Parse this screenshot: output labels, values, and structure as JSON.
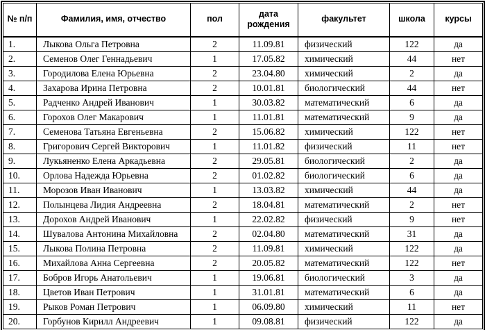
{
  "table": {
    "headers": [
      "№ п/п",
      "Фамилия, имя, отчество",
      "пол",
      "дата рождения",
      "факультет",
      "школа",
      "курсы"
    ],
    "rows": [
      [
        "1.",
        "Лыкова Ольга Петровна",
        "2",
        "11.09.81",
        "физический",
        "122",
        "да"
      ],
      [
        "2.",
        "Семенов Олег Геннадьевич",
        "1",
        "17.05.82",
        "химический",
        "44",
        "нет"
      ],
      [
        "3.",
        "Городилова Елена Юрьевна",
        "2",
        "23.04.80",
        "химический",
        "2",
        "да"
      ],
      [
        "4.",
        "Захарова Ирина Петровна",
        "2",
        "10.01.81",
        "биологический",
        "44",
        "нет"
      ],
      [
        "5.",
        "Радченко Андрей Иванович",
        "1",
        "30.03.82",
        "математический",
        "6",
        "да"
      ],
      [
        "6.",
        "Горохов Олег Макарович",
        "1",
        "11.01.81",
        "математический",
        "9",
        "да"
      ],
      [
        "7.",
        "Семенова Татьяна Евгеньевна",
        "2",
        "15.06.82",
        "химический",
        "122",
        "нет"
      ],
      [
        "8.",
        "Григорович Сергей Викторович",
        "1",
        "11.01.82",
        "физический",
        "11",
        "нет"
      ],
      [
        "9.",
        "Лукьяненко Елена Аркадьевна",
        "2",
        "29.05.81",
        "биологический",
        "2",
        "да"
      ],
      [
        "10.",
        "Орлова Надежда Юрьевна",
        "2",
        "01.02.82",
        "биологический",
        "6",
        "да"
      ],
      [
        "11.",
        "Морозов Иван Иванович",
        "1",
        "13.03.82",
        "химический",
        "44",
        "да"
      ],
      [
        "12.",
        "Полынцева Лидия Андреевна",
        "2",
        "18.04.81",
        "математический",
        "2",
        "нет"
      ],
      [
        "13.",
        "Дорохов Андрей Иванович",
        "1",
        "22.02.82",
        "физический",
        "9",
        "нет"
      ],
      [
        "14.",
        "Шувалова Антонина Михайловна",
        "2",
        "02.04.80",
        "математический",
        "31",
        "да"
      ],
      [
        "15.",
        "Лыкова Полина Петровна",
        "2",
        "11.09.81",
        "химический",
        "122",
        "да"
      ],
      [
        "16.",
        "Михайлова Анна Сергеевна",
        "2",
        "20.05.82",
        "математический",
        "122",
        "нет"
      ],
      [
        "17.",
        "Бобров Игорь Анатольевич",
        "1",
        "19.06.81",
        "биологический",
        "3",
        "да"
      ],
      [
        "18.",
        "Цветов Иван Петрович",
        "1",
        "31.01.81",
        "математический",
        "6",
        "да"
      ],
      [
        "19.",
        "Рыков Роман Петрович",
        "1",
        "06.09.80",
        "химический",
        "11",
        "нет"
      ],
      [
        "20.",
        "Горбунов Кирилл Андреевич",
        "1",
        "09.08.81",
        "физический",
        "122",
        "да"
      ]
    ],
    "column_names": [
      "row-number",
      "full-name",
      "gender",
      "birth-date",
      "faculty",
      "school",
      "courses"
    ]
  },
  "colors": {
    "border": "#000000",
    "text": "#000000",
    "background": "#ffffff"
  }
}
